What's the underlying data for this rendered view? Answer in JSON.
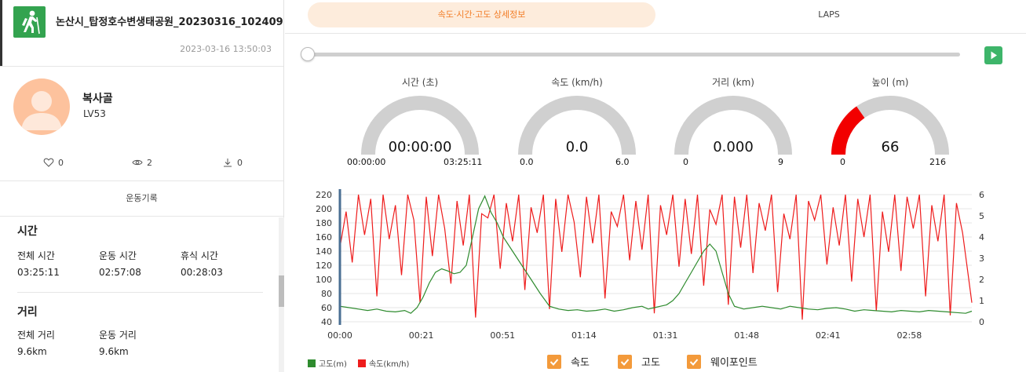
{
  "track": {
    "title": "논산시_탑정호수변생태공원_20230316_102409",
    "date": "2023-03-16 13:50:03",
    "logo_icon": "hiking-person-icon"
  },
  "user": {
    "name": "복사골",
    "level": "LV53",
    "likes": "0",
    "views": "2",
    "downloads": "0"
  },
  "record_tab_label": "운동기록",
  "time_section": {
    "title": "시간",
    "total_label": "전체 시간",
    "total_value": "03:25:11",
    "moving_label": "운동 시간",
    "moving_value": "02:57:08",
    "rest_label": "휴식 시간",
    "rest_value": "00:28:03"
  },
  "distance_section": {
    "title": "거리",
    "total_label": "전체 거리",
    "total_value": "9.6km",
    "moving_label": "운동 거리",
    "moving_value": "9.6km"
  },
  "tabs": {
    "detail": "속도·시간·고도 상세정보",
    "laps": "LAPS"
  },
  "playback": {
    "position": 0
  },
  "gauges": [
    {
      "label": "시간 (초)",
      "value": "00:00:00",
      "min": "00:00:00",
      "max": "03:25:11",
      "fraction": 0,
      "color": "#d0d0d0"
    },
    {
      "label": "속도 (km/h)",
      "value": "0.0",
      "min": "0.0",
      "max": "6.0",
      "fraction": 0,
      "color": "#d0d0d0"
    },
    {
      "label": "거리 (km)",
      "value": "0.000",
      "min": "0",
      "max": "9",
      "fraction": 0,
      "color": "#d0d0d0"
    },
    {
      "label": "높이 (m)",
      "value": "66",
      "min": "0",
      "max": "216",
      "fraction": 0.306,
      "color": "#f20000"
    }
  ],
  "colors": {
    "accent": "#f27d27",
    "altitude": "#2e8b2e",
    "speed": "#ee1c1c",
    "play": "#3eb56a",
    "gauge_track": "#d0d0d0"
  },
  "chart_data": {
    "type": "line",
    "x_ticks": [
      "00:00",
      "00:21",
      "00:51",
      "01:14",
      "01:31",
      "01:48",
      "02:41",
      "02:58"
    ],
    "y_left": {
      "ticks": [
        40,
        60,
        80,
        100,
        120,
        140,
        160,
        180,
        200,
        220
      ],
      "lim": [
        40,
        220
      ]
    },
    "y_right": {
      "ticks": [
        0,
        1,
        2,
        3,
        4,
        5,
        6
      ],
      "lim": [
        0,
        6
      ]
    },
    "grid": true,
    "legend_position": "bottom-left",
    "series": [
      {
        "name": "고도(m)",
        "axis": "left",
        "color": "#2e8b2e",
        "x": [
          0,
          3,
          6,
          9,
          12,
          15,
          18,
          21,
          23,
          25,
          27,
          29,
          31,
          33,
          35,
          37,
          39,
          41,
          43,
          45,
          47,
          49,
          51,
          53,
          56,
          59,
          62,
          65,
          68,
          71,
          74,
          77,
          80,
          83,
          86,
          89,
          92,
          95,
          98,
          100,
          102,
          104,
          106,
          108,
          110,
          112,
          114,
          116,
          118,
          120,
          122,
          124,
          126,
          128,
          131,
          134,
          137,
          140,
          143,
          146,
          149,
          152,
          155,
          158,
          161,
          164,
          167,
          170,
          173,
          176,
          179,
          182,
          185,
          188,
          191,
          194,
          197,
          200,
          203,
          205
        ],
        "values": [
          62,
          60,
          58,
          56,
          58,
          55,
          54,
          56,
          52,
          60,
          75,
          95,
          110,
          115,
          112,
          108,
          110,
          120,
          160,
          200,
          218,
          195,
          180,
          160,
          140,
          120,
          100,
          80,
          62,
          58,
          56,
          57,
          55,
          56,
          58,
          55,
          57,
          60,
          62,
          58,
          60,
          62,
          64,
          70,
          80,
          95,
          110,
          125,
          140,
          150,
          140,
          110,
          80,
          62,
          58,
          60,
          62,
          60,
          58,
          62,
          60,
          58,
          57,
          59,
          60,
          58,
          55,
          57,
          56,
          55,
          54,
          56,
          55,
          54,
          56,
          55,
          54,
          53,
          52,
          55
        ]
      },
      {
        "name": "속도(km/h)",
        "axis": "right",
        "color": "#ee1c1c",
        "x": [
          0,
          2,
          4,
          6,
          8,
          10,
          12,
          14,
          16,
          18,
          20,
          22,
          24,
          26,
          28,
          30,
          32,
          34,
          36,
          38,
          40,
          42,
          44,
          46,
          48,
          50,
          52,
          54,
          56,
          58,
          60,
          62,
          64,
          66,
          68,
          70,
          72,
          74,
          76,
          78,
          80,
          82,
          84,
          86,
          88,
          90,
          92,
          94,
          96,
          98,
          100,
          102,
          104,
          106,
          108,
          110,
          112,
          114,
          116,
          118,
          120,
          122,
          124,
          126,
          128,
          130,
          132,
          134,
          136,
          138,
          140,
          142,
          144,
          146,
          148,
          150,
          152,
          154,
          156,
          158,
          160,
          162,
          164,
          166,
          168,
          170,
          172,
          174,
          176,
          178,
          180,
          182,
          184,
          186,
          188,
          190,
          192,
          194,
          196,
          198,
          200,
          202,
          204,
          205
        ],
        "values": [
          3.5,
          5.2,
          2.8,
          6,
          4.1,
          5.8,
          1.2,
          6,
          3.9,
          5.5,
          2.2,
          6,
          4.8,
          0.9,
          5.9,
          3.1,
          6,
          4.4,
          1.8,
          5.7,
          3.6,
          6,
          0.2,
          5.1,
          4.9,
          6,
          2.5,
          5.6,
          3.8,
          6,
          1.5,
          5.4,
          4.2,
          6,
          0.6,
          5.8,
          3.3,
          6,
          4.7,
          2.1,
          5.9,
          3.7,
          6,
          1.1,
          5.2,
          4.5,
          6,
          2.9,
          5.7,
          3.4,
          6,
          0.4,
          5.5,
          4.1,
          6,
          2.6,
          5.8,
          3.2,
          6,
          1.7,
          5.3,
          4.6,
          6,
          0.8,
          5.9,
          3.5,
          6,
          2.3,
          5.6,
          4.3,
          6,
          1.4,
          5.1,
          3.9,
          6,
          0.1,
          5.7,
          4.8,
          6,
          2.7,
          5.4,
          3.6,
          6,
          1.9,
          5.8,
          4.0,
          6,
          0.5,
          5.2,
          3.3,
          6,
          2.4,
          5.9,
          4.4,
          6,
          1.2,
          5.5,
          3.8,
          6,
          0.3,
          5.6,
          4.2,
          2.0,
          0.9
        ]
      }
    ]
  },
  "legend": {
    "altitude": "고도(m)",
    "speed": "속도(km/h)"
  },
  "filters": {
    "speed": "속도",
    "altitude": "고도",
    "waypoint": "웨이포인트"
  }
}
